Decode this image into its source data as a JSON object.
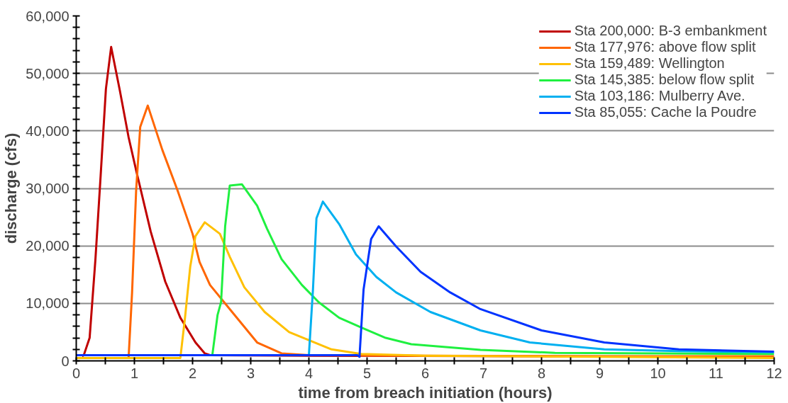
{
  "chart_data": {
    "type": "line",
    "xlabel": "time from breach initiation (hours)",
    "ylabel": "discharge (cfs)",
    "xlim": [
      0,
      12
    ],
    "ylim": [
      0,
      60000
    ],
    "xticks": [
      0,
      {
        "value": 0.5,
        "label": null
      },
      1,
      {
        "value": 1.5,
        "label": null
      },
      2,
      {
        "value": 2.5,
        "label": null
      },
      3,
      {
        "value": 3.5,
        "label": null
      },
      4,
      {
        "value": 4.5,
        "label": null
      },
      5,
      {
        "value": 5.5,
        "label": null
      },
      6,
      {
        "value": 6.5,
        "label": null
      },
      7,
      {
        "value": 7.5,
        "label": null
      },
      8,
      {
        "value": 8.5,
        "label": null
      },
      9,
      {
        "value": 9.5,
        "label": null
      },
      10,
      {
        "value": 10.5,
        "label": null
      },
      11,
      {
        "value": 11.5,
        "label": null
      },
      12
    ],
    "yticks": [
      0,
      {
        "value": 2000,
        "label": null
      },
      {
        "value": 4000,
        "label": null
      },
      {
        "value": 6000,
        "label": null
      },
      {
        "value": 8000,
        "label": null
      },
      {
        "value": 10000,
        "label": "10,000"
      },
      {
        "value": 12000,
        "label": null
      },
      {
        "value": 14000,
        "label": null
      },
      {
        "value": 16000,
        "label": null
      },
      {
        "value": 18000,
        "label": null
      },
      {
        "value": 20000,
        "label": "20,000"
      },
      {
        "value": 22000,
        "label": null
      },
      {
        "value": 24000,
        "label": null
      },
      {
        "value": 26000,
        "label": null
      },
      {
        "value": 28000,
        "label": null
      },
      {
        "value": 30000,
        "label": "30,000"
      },
      {
        "value": 32000,
        "label": null
      },
      {
        "value": 34000,
        "label": null
      },
      {
        "value": 36000,
        "label": null
      },
      {
        "value": 38000,
        "label": null
      },
      {
        "value": 40000,
        "label": "40,000"
      },
      {
        "value": 42000,
        "label": null
      },
      {
        "value": 44000,
        "label": null
      },
      {
        "value": 46000,
        "label": null
      },
      {
        "value": 48000,
        "label": null
      },
      {
        "value": 50000,
        "label": "50,000"
      },
      {
        "value": 52000,
        "label": null
      },
      {
        "value": 54000,
        "label": null
      },
      {
        "value": 56000,
        "label": null
      },
      {
        "value": 58000,
        "label": null
      },
      {
        "value": 60000,
        "label": "60,000"
      }
    ],
    "grid": "y",
    "legend": "top right",
    "marker": "none",
    "line_style": "solid",
    "series": [
      {
        "name": "Sta 200,000: B-3 embankment",
        "color": "#c00000",
        "x": [
          0.1,
          0.13,
          0.23,
          0.33,
          0.42,
          0.51,
          0.6,
          0.75,
          0.9,
          1.04,
          1.28,
          1.53,
          1.79,
          2.05,
          2.21,
          2.3,
          4,
          8,
          12
        ],
        "values": [
          800,
          1000,
          4000,
          17700,
          32300,
          47300,
          54600,
          47000,
          38900,
          32700,
          22500,
          13800,
          7500,
          3200,
          1300,
          1000,
          900,
          800,
          700
        ]
      },
      {
        "name": "Sta 177,976: above flow split",
        "color": "#ff6600",
        "x": [
          0,
          0.9,
          0.96,
          1.03,
          1.1,
          1.23,
          1.48,
          1.74,
          2.0,
          2.12,
          2.3,
          2.68,
          3.11,
          3.53,
          4,
          6,
          9,
          12
        ],
        "values": [
          500,
          500,
          11900,
          29700,
          40700,
          44400,
          36700,
          29700,
          22100,
          17200,
          13200,
          8500,
          3200,
          1300,
          1000,
          900,
          800,
          800
        ]
      },
      {
        "name": "Sta 159,489: Wellington",
        "color": "#ffc000",
        "x": [
          0,
          1.79,
          1.87,
          1.96,
          2.05,
          2.21,
          2.47,
          2.64,
          2.89,
          3.24,
          3.66,
          4.39,
          4.9,
          6,
          9,
          12
        ],
        "values": [
          500,
          500,
          7500,
          16400,
          21700,
          24100,
          22100,
          18100,
          12800,
          8500,
          5000,
          2000,
          1200,
          900,
          700,
          500
        ]
      },
      {
        "name": "Sta 145,385: below flow split",
        "color": "#1ff040",
        "x": [
          2.34,
          2.43,
          2.49,
          2.56,
          2.64,
          2.85,
          3.11,
          3.28,
          3.53,
          3.88,
          4.17,
          4.52,
          4.9,
          5.32,
          5.76,
          6.95,
          8.23,
          10,
          12
        ],
        "values": [
          1000,
          8000,
          10200,
          23400,
          30500,
          30700,
          27000,
          23000,
          17700,
          13200,
          10200,
          7500,
          5800,
          4000,
          2900,
          1900,
          1400,
          1300,
          1200
        ]
      },
      {
        "name": "Sta 103,186: Mulberry Ave.",
        "color": "#00b0f0",
        "x": [
          0,
          4.0,
          4.07,
          4.13,
          4.24,
          4.52,
          4.81,
          5.16,
          5.5,
          6.09,
          6.95,
          7.8,
          9.08,
          10.36,
          12
        ],
        "values": [
          1000,
          1000,
          12400,
          24800,
          27700,
          23800,
          18500,
          14600,
          11900,
          8500,
          5300,
          3200,
          2000,
          1700,
          1500
        ]
      },
      {
        "name": "Sta 85,055: Cache la Poudre",
        "color": "#0033ff",
        "x": [
          0,
          4.83,
          4.87,
          4.94,
          5.07,
          5.2,
          5.5,
          5.92,
          6.43,
          6.95,
          8.0,
          9.08,
          10.36,
          12
        ],
        "values": [
          1000,
          1000,
          700,
          12400,
          21200,
          23400,
          19900,
          15500,
          11900,
          9000,
          5300,
          3200,
          2000,
          1600
        ]
      }
    ]
  }
}
